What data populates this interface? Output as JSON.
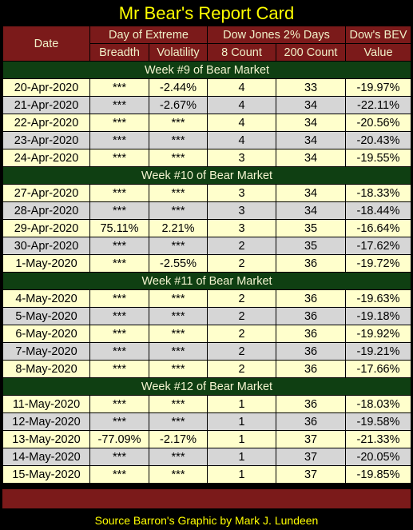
{
  "title": "Mr Bear's Report Card",
  "headers": {
    "date": "Date",
    "day_of_extreme": "Day of Extreme",
    "dow_2pct_days": "Dow Jones 2% Days",
    "dows_bev": "Dow's BEV",
    "breadth": "Breadth",
    "volatility": "Volatility",
    "count8": "8 Count",
    "count200": "200 Count",
    "value": "Value"
  },
  "weeks": [
    {
      "label": "Week #9 of Bear Market",
      "rows": [
        {
          "date": "20-Apr-2020",
          "breadth": "***",
          "volatility": "-2.44%",
          "c8": "4",
          "c200": "33",
          "bev": "-19.97%"
        },
        {
          "date": "21-Apr-2020",
          "breadth": "***",
          "volatility": "-2.67%",
          "c8": "4",
          "c200": "34",
          "bev": "-22.11%"
        },
        {
          "date": "22-Apr-2020",
          "breadth": "***",
          "volatility": "***",
          "c8": "4",
          "c200": "34",
          "bev": "-20.56%"
        },
        {
          "date": "23-Apr-2020",
          "breadth": "***",
          "volatility": "***",
          "c8": "4",
          "c200": "34",
          "bev": "-20.43%"
        },
        {
          "date": "24-Apr-2020",
          "breadth": "***",
          "volatility": "***",
          "c8": "3",
          "c200": "34",
          "bev": "-19.55%"
        }
      ]
    },
    {
      "label": "Week #10 of Bear Market",
      "rows": [
        {
          "date": "27-Apr-2020",
          "breadth": "***",
          "volatility": "***",
          "c8": "3",
          "c200": "34",
          "bev": "-18.33%"
        },
        {
          "date": "28-Apr-2020",
          "breadth": "***",
          "volatility": "***",
          "c8": "3",
          "c200": "34",
          "bev": "-18.44%"
        },
        {
          "date": "29-Apr-2020",
          "breadth": "75.11%",
          "volatility": "2.21%",
          "c8": "3",
          "c200": "35",
          "bev": "-16.64%"
        },
        {
          "date": "30-Apr-2020",
          "breadth": "***",
          "volatility": "***",
          "c8": "2",
          "c200": "35",
          "bev": "-17.62%"
        },
        {
          "date": "1-May-2020",
          "breadth": "***",
          "volatility": "-2.55%",
          "c8": "2",
          "c200": "36",
          "bev": "-19.72%"
        }
      ]
    },
    {
      "label": "Week #11 of Bear Market",
      "rows": [
        {
          "date": "4-May-2020",
          "breadth": "***",
          "volatility": "***",
          "c8": "2",
          "c200": "36",
          "bev": "-19.63%"
        },
        {
          "date": "5-May-2020",
          "breadth": "***",
          "volatility": "***",
          "c8": "2",
          "c200": "36",
          "bev": "-19.18%"
        },
        {
          "date": "6-May-2020",
          "breadth": "***",
          "volatility": "***",
          "c8": "2",
          "c200": "36",
          "bev": "-19.92%"
        },
        {
          "date": "7-May-2020",
          "breadth": "***",
          "volatility": "***",
          "c8": "2",
          "c200": "36",
          "bev": "-19.21%"
        },
        {
          "date": "8-May-2020",
          "breadth": "***",
          "volatility": "***",
          "c8": "2",
          "c200": "36",
          "bev": "-17.66%"
        }
      ]
    },
    {
      "label": "Week #12 of Bear Market",
      "rows": [
        {
          "date": "11-May-2020",
          "breadth": "***",
          "volatility": "***",
          "c8": "1",
          "c200": "36",
          "bev": "-18.03%"
        },
        {
          "date": "12-May-2020",
          "breadth": "***",
          "volatility": "***",
          "c8": "1",
          "c200": "36",
          "bev": "-19.58%"
        },
        {
          "date": "13-May-2020",
          "breadth": "-77.09%",
          "volatility": "-2.17%",
          "c8": "1",
          "c200": "37",
          "bev": "-21.33%"
        },
        {
          "date": "14-May-2020",
          "breadth": "***",
          "volatility": "***",
          "c8": "1",
          "c200": "37",
          "bev": "-20.05%"
        },
        {
          "date": "15-May-2020",
          "breadth": "***",
          "volatility": "***",
          "c8": "1",
          "c200": "37",
          "bev": "-19.85%"
        }
      ]
    }
  ],
  "source": "Source Barron's  Graphic by Mark J. Lundeen",
  "colors": {
    "header_bg": "#7b1a1a",
    "week_bg": "#0f3f12",
    "row_light": "#ffffcc",
    "row_gray": "#d6d6d6",
    "title_text": "#ffff00"
  }
}
